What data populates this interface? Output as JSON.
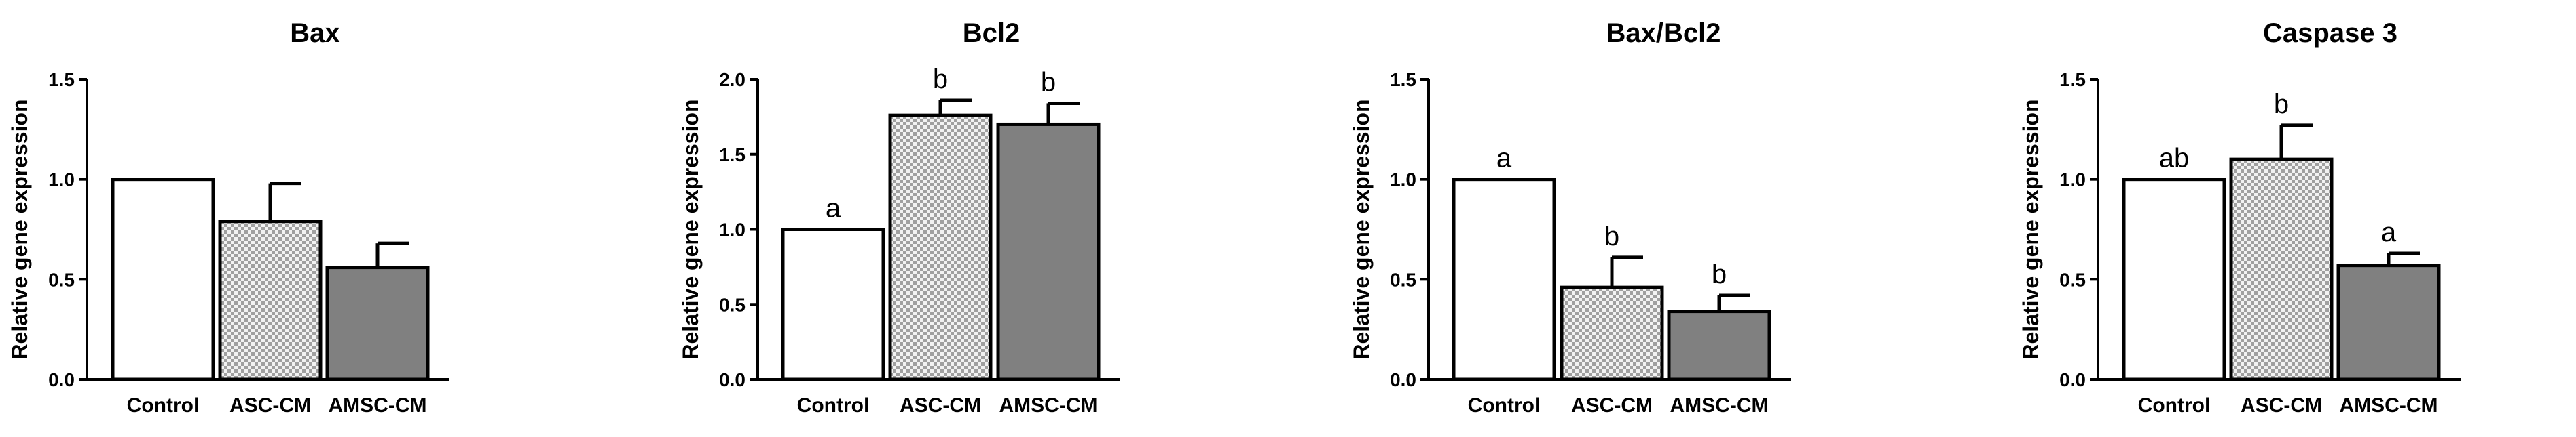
{
  "colors": {
    "control_fill": "#ffffff",
    "asc_fill_light": "#f2f2f2",
    "asc_fill_dark": "#a0a0a0",
    "amsc_fill": "#808080",
    "stroke": "#000000"
  },
  "chart_data": [
    {
      "type": "bar",
      "title": "Bax",
      "ylabel": "Relative gene expression",
      "xlabel": "",
      "categories": [
        "Control",
        "ASC-CM",
        "AMSC-CM"
      ],
      "values": [
        1.0,
        0.79,
        0.56
      ],
      "errors": [
        0,
        0.19,
        0.12
      ],
      "significance": [
        "",
        "",
        ""
      ],
      "ylim": [
        0,
        1.5
      ],
      "yticks": [
        "0.0",
        "0.5",
        "1.0",
        "1.5"
      ],
      "ytick_values": [
        0,
        0.5,
        1.0,
        1.5
      ]
    },
    {
      "type": "bar",
      "title": "Bcl2",
      "ylabel": "Relative gene expression",
      "xlabel": "",
      "categories": [
        "Control",
        "ASC-CM",
        "AMSC-CM"
      ],
      "values": [
        1.0,
        1.76,
        1.7
      ],
      "errors": [
        0,
        0.1,
        0.14
      ],
      "significance": [
        "a",
        "b",
        "b"
      ],
      "ylim": [
        0,
        2.0
      ],
      "yticks": [
        "0.0",
        "0.5",
        "1.0",
        "1.5",
        "2.0"
      ],
      "ytick_values": [
        0,
        0.5,
        1.0,
        1.5,
        2.0
      ]
    },
    {
      "type": "bar",
      "title": "Bax/Bcl2",
      "ylabel": "Relative gene expression",
      "xlabel": "",
      "categories": [
        "Control",
        "ASC-CM",
        "AMSC-CM"
      ],
      "values": [
        1.0,
        0.46,
        0.34
      ],
      "errors": [
        0,
        0.15,
        0.08
      ],
      "significance": [
        "a",
        "b",
        "b"
      ],
      "ylim": [
        0,
        1.5
      ],
      "yticks": [
        "0.0",
        "0.5",
        "1.0",
        "1.5"
      ],
      "ytick_values": [
        0,
        0.5,
        1.0,
        1.5
      ]
    },
    {
      "type": "bar",
      "title": "Caspase 3",
      "ylabel": "Relative gene expression",
      "xlabel": "",
      "categories": [
        "Control",
        "ASC-CM",
        "AMSC-CM"
      ],
      "values": [
        1.0,
        1.1,
        0.57
      ],
      "errors": [
        0,
        0.17,
        0.06
      ],
      "significance": [
        "ab",
        "b",
        "a"
      ],
      "ylim": [
        0,
        1.5
      ],
      "yticks": [
        "0.0",
        "0.5",
        "1.0",
        "1.5"
      ],
      "ytick_values": [
        0,
        0.5,
        1.0,
        1.5
      ]
    }
  ]
}
